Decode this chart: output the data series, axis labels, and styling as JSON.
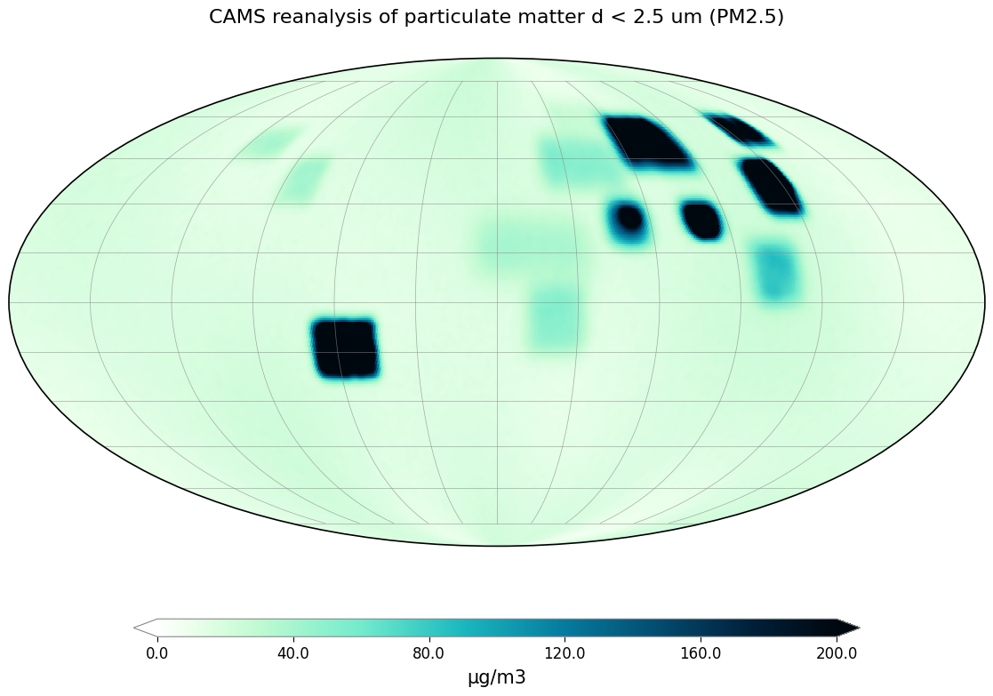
{
  "title": "CAMS reanalysis of particulate matter d < 2.5 um (PM2.5)",
  "colorbar_label": "μg/m3",
  "colorbar_ticks": [
    0.0,
    40.0,
    80.0,
    120.0,
    160.0,
    200.0
  ],
  "vmin": 0.0,
  "vmax": 200.0,
  "title_fontsize": 16,
  "colorbar_fontsize": 12,
  "background_color": "#ffffff",
  "coastline_color": "#000000",
  "coastline_linewidth": 0.6,
  "grid_color": "#888888",
  "grid_linewidth": 0.5,
  "cmap_nodes": [
    [
      0.0,
      [
        1.0,
        1.0,
        1.0
      ]
    ],
    [
      0.05,
      [
        0.92,
        1.0,
        0.92
      ]
    ],
    [
      0.15,
      [
        0.75,
        0.98,
        0.82
      ]
    ],
    [
      0.3,
      [
        0.45,
        0.92,
        0.8
      ]
    ],
    [
      0.45,
      [
        0.1,
        0.72,
        0.75
      ]
    ],
    [
      0.6,
      [
        0.02,
        0.48,
        0.62
      ]
    ],
    [
      0.75,
      [
        0.01,
        0.28,
        0.42
      ]
    ],
    [
      0.88,
      [
        0.0,
        0.12,
        0.22
      ]
    ],
    [
      1.0,
      [
        0.0,
        0.03,
        0.06
      ]
    ]
  ],
  "hotspots": [
    {
      "lat": [
        28,
        42
      ],
      "lon": [
        108,
        122
      ],
      "scale": 100,
      "sigma": 2.0,
      "mult": 3.0
    },
    {
      "lat": [
        35,
        43
      ],
      "lon": [
        112,
        122
      ],
      "scale": 150,
      "sigma": 1.2,
      "mult": 4.0
    },
    {
      "lat": [
        50,
        60
      ],
      "lon": [
        118,
        135
      ],
      "scale": 80,
      "sigma": 1.5,
      "mult": 2.5
    },
    {
      "lat": [
        22,
        30
      ],
      "lon": [
        74,
        87
      ],
      "scale": 80,
      "sigma": 2.0,
      "mult": 2.5
    },
    {
      "lat": [
        20,
        28
      ],
      "lon": [
        76,
        85
      ],
      "scale": 100,
      "sigma": 1.2,
      "mult": 3.0
    },
    {
      "lat": [
        18,
        30
      ],
      "lon": [
        44,
        58
      ],
      "scale": 70,
      "sigma": 2.5,
      "mult": 2.0
    },
    {
      "lat": [
        24,
        28
      ],
      "lon": [
        50,
        56
      ],
      "scale": 90,
      "sigma": 1.5,
      "mult": 3.0
    },
    {
      "lat": [
        42,
        58
      ],
      "lon": [
        58,
        88
      ],
      "scale": 80,
      "sigma": 2.5,
      "mult": 2.5
    },
    {
      "lat": [
        48,
        58
      ],
      "lon": [
        62,
        82
      ],
      "scale": 100,
      "sigma": 1.5,
      "mult": 3.0
    },
    {
      "lat": [
        -22,
        -6
      ],
      "lon": [
        -68,
        -46
      ],
      "scale": 90,
      "sigma": 1.5,
      "mult": 3.0
    },
    {
      "lat": [
        -18,
        -8
      ],
      "lon": [
        -64,
        -50
      ],
      "scale": 160,
      "sigma": 0.8,
      "mult": 5.0
    },
    {
      "lat": [
        -15,
        5
      ],
      "lon": [
        12,
        32
      ],
      "scale": 25,
      "sigma": 3.0,
      "mult": 1.5
    },
    {
      "lat": [
        8,
        25
      ],
      "lon": [
        -8,
        35
      ],
      "scale": 20,
      "sigma": 4.0,
      "mult": 1.2
    },
    {
      "lat": [
        0,
        18
      ],
      "lon": [
        96,
        112
      ],
      "scale": 35,
      "sigma": 2.5,
      "mult": 1.8
    },
    {
      "lat": [
        35,
        52
      ],
      "lon": [
        20,
        55
      ],
      "scale": 25,
      "sigma": 3.0,
      "mult": 1.5
    },
    {
      "lat": [
        55,
        65
      ],
      "lon": [
        30,
        65
      ],
      "scale": 15,
      "sigma": 3.5,
      "mult": 1.2
    },
    {
      "lat": [
        45,
        55
      ],
      "lon": [
        -120,
        -100
      ],
      "scale": 20,
      "sigma": 2.0,
      "mult": 1.3
    },
    {
      "lat": [
        30,
        45
      ],
      "lon": [
        -90,
        -75
      ],
      "scale": 20,
      "sigma": 2.0,
      "mult": 1.3
    }
  ]
}
